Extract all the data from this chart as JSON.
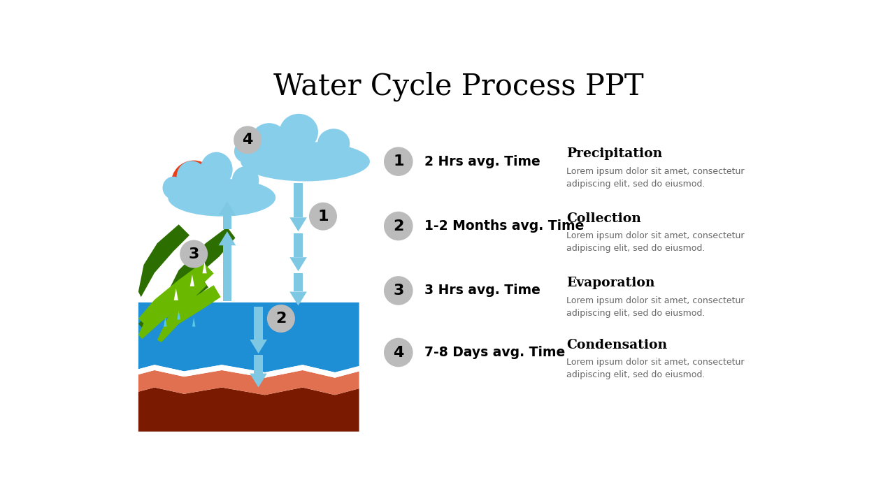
{
  "title": "Water Cycle Process PPT",
  "title_fontsize": 30,
  "title_font": "serif",
  "background_color": "#ffffff",
  "stages": [
    {
      "num": "1",
      "time": "2 Hrs avg. Time",
      "name": "Precipitation",
      "desc": "Lorem ipsum dolor sit amet, consectetur\nadipiscing elit, sed do eiusmod."
    },
    {
      "num": "2",
      "time": "1-2 Months avg. Time",
      "name": "Collection",
      "desc": "Lorem ipsum dolor sit amet, consectetur\nadipiscing elit, sed do eiusmod."
    },
    {
      "num": "3",
      "time": "3 Hrs avg. Time",
      "name": "Evaporation",
      "desc": "Lorem ipsum dolor sit amet, consectetur\nadipiscing elit, sed do eiusmod."
    },
    {
      "num": "4",
      "time": "7-8 Days avg. Time",
      "name": "Condensation",
      "desc": "Lorem ipsum dolor sit amet, consectetur\nadipiscing elit, sed do eiusmod."
    }
  ],
  "circle_color": "#bbbbbb",
  "arrow_color": "#7ec8e3",
  "cloud_color": "#87ceeb",
  "sun_color": "#e8401c",
  "ocean_blue": "#1e8fd5",
  "ground_color": "#7a1a00",
  "sand_color": "#e07050",
  "grass_dark": "#2d6e00",
  "grass_light": "#6ab800",
  "white": "#ffffff"
}
